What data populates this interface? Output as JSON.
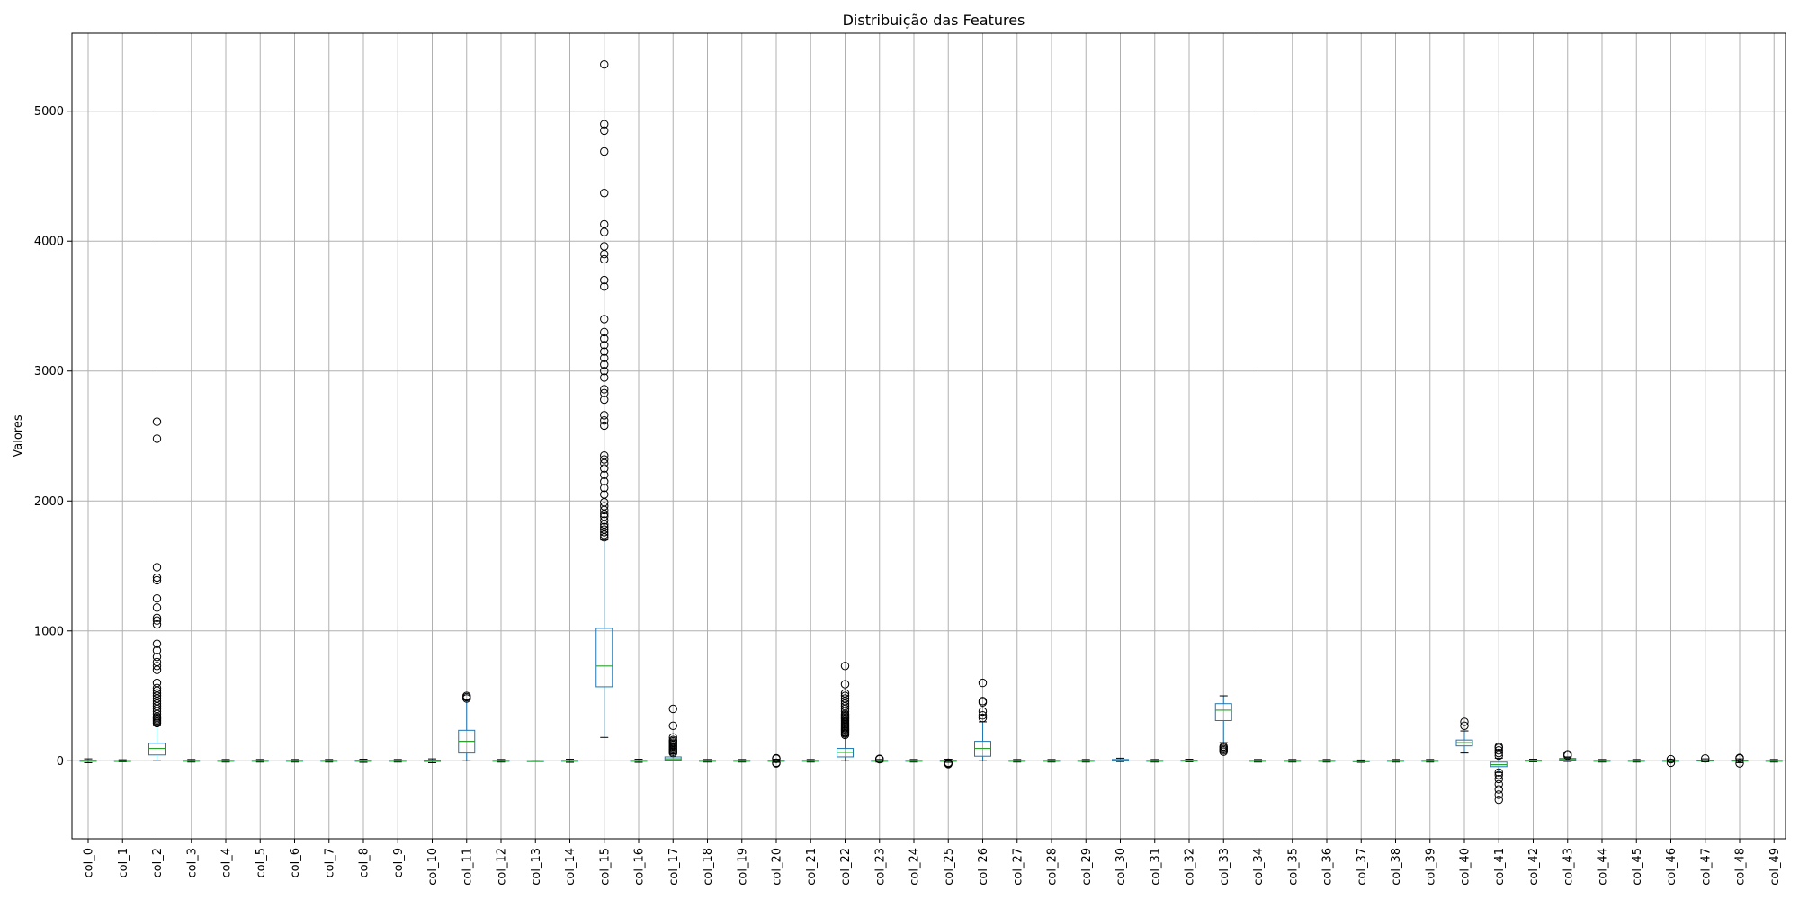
{
  "chart_data": {
    "type": "boxplot",
    "title": "Distribuição das Features",
    "xlabel": "",
    "ylabel": "Valores",
    "ylim": [
      -600,
      5600
    ],
    "yticks": [
      0,
      1000,
      2000,
      3000,
      4000,
      5000
    ],
    "grid": true,
    "colors": {
      "box": "#1f77b4",
      "median": "#2ca02c",
      "outlier": "#000000",
      "grid": "#b0b0b0"
    },
    "series": [
      {
        "label": "col_0",
        "whislo": -15,
        "q1": -4,
        "med": 0,
        "q3": 4,
        "whishi": 15,
        "fliers": []
      },
      {
        "label": "col_1",
        "whislo": -8,
        "q1": -2,
        "med": 0,
        "q3": 2,
        "whishi": 8,
        "fliers": []
      },
      {
        "label": "col_2",
        "whislo": 0,
        "q1": 45,
        "med": 95,
        "q3": 135,
        "whishi": 270,
        "fliers": [
          290,
          300,
          310,
          320,
          330,
          340,
          360,
          380,
          400,
          420,
          440,
          460,
          480,
          500,
          520,
          540,
          560,
          600,
          700,
          730,
          760,
          800,
          850,
          900,
          1050,
          1080,
          1100,
          1180,
          1250,
          1390,
          1410,
          1490,
          2480,
          2610
        ]
      },
      {
        "label": "col_3",
        "whislo": -10,
        "q1": -3,
        "med": 0,
        "q3": 3,
        "whishi": 10,
        "fliers": []
      },
      {
        "label": "col_4",
        "whislo": -10,
        "q1": -3,
        "med": 0,
        "q3": 3,
        "whishi": 10,
        "fliers": []
      },
      {
        "label": "col_5",
        "whislo": -10,
        "q1": -3,
        "med": 0,
        "q3": 3,
        "whishi": 10,
        "fliers": []
      },
      {
        "label": "col_6",
        "whislo": -10,
        "q1": -3,
        "med": 0,
        "q3": 3,
        "whishi": 10,
        "fliers": []
      },
      {
        "label": "col_7",
        "whislo": -10,
        "q1": -3,
        "med": 0,
        "q3": 3,
        "whishi": 10,
        "fliers": []
      },
      {
        "label": "col_8",
        "whislo": -12,
        "q1": -4,
        "med": 0,
        "q3": 4,
        "whishi": 12,
        "fliers": []
      },
      {
        "label": "col_9",
        "whislo": -10,
        "q1": -3,
        "med": 0,
        "q3": 3,
        "whishi": 10,
        "fliers": []
      },
      {
        "label": "col_10",
        "whislo": -15,
        "q1": -5,
        "med": 0,
        "q3": 5,
        "whishi": 15,
        "fliers": []
      },
      {
        "label": "col_11",
        "whislo": 0,
        "q1": 60,
        "med": 150,
        "q3": 235,
        "whishi": 470,
        "fliers": [
          480,
          490,
          500
        ]
      },
      {
        "label": "col_12",
        "whislo": -10,
        "q1": -3,
        "med": 0,
        "q3": 3,
        "whishi": 10,
        "fliers": []
      },
      {
        "label": "col_13",
        "whislo": -2,
        "q1": -1,
        "med": 0,
        "q3": 1,
        "whishi": 2,
        "fliers": []
      },
      {
        "label": "col_14",
        "whislo": -12,
        "q1": -3,
        "med": 0,
        "q3": 3,
        "whishi": 12,
        "fliers": []
      },
      {
        "label": "col_15",
        "whislo": 180,
        "q1": 570,
        "med": 730,
        "q3": 1020,
        "whishi": 1700,
        "fliers": [
          1720,
          1740,
          1760,
          1780,
          1800,
          1820,
          1850,
          1880,
          1900,
          1930,
          1960,
          1990,
          2050,
          2100,
          2150,
          2200,
          2250,
          2290,
          2320,
          2350,
          2580,
          2620,
          2660,
          2780,
          2830,
          2860,
          2950,
          3000,
          3050,
          3100,
          3150,
          3200,
          3250,
          3300,
          3400,
          3650,
          3700,
          3860,
          3900,
          3960,
          4070,
          4130,
          4370,
          4690,
          4850,
          4900,
          5360
        ]
      },
      {
        "label": "col_16",
        "whislo": -12,
        "q1": -3,
        "med": 0,
        "q3": 3,
        "whishi": 12,
        "fliers": []
      },
      {
        "label": "col_17",
        "whislo": 0,
        "q1": 5,
        "med": 15,
        "q3": 30,
        "whishi": 55,
        "fliers": [
          60,
          70,
          80,
          90,
          100,
          110,
          120,
          130,
          140,
          150,
          160,
          180,
          270,
          400
        ]
      },
      {
        "label": "col_18",
        "whislo": -10,
        "q1": -3,
        "med": 0,
        "q3": 3,
        "whishi": 10,
        "fliers": []
      },
      {
        "label": "col_19",
        "whislo": -10,
        "q1": -3,
        "med": 0,
        "q3": 3,
        "whishi": 10,
        "fliers": []
      },
      {
        "label": "col_20",
        "whislo": -12,
        "q1": -4,
        "med": 0,
        "q3": 4,
        "whishi": 12,
        "fliers": [
          -20,
          -15,
          15,
          20
        ]
      },
      {
        "label": "col_21",
        "whislo": -10,
        "q1": -3,
        "med": 0,
        "q3": 3,
        "whishi": 10,
        "fliers": []
      },
      {
        "label": "col_22",
        "whislo": 0,
        "q1": 30,
        "med": 65,
        "q3": 95,
        "whishi": 190,
        "fliers": [
          200,
          210,
          220,
          230,
          240,
          250,
          260,
          270,
          280,
          290,
          300,
          310,
          320,
          330,
          340,
          350,
          360,
          380,
          400,
          420,
          440,
          460,
          480,
          500,
          520,
          590,
          730
        ]
      },
      {
        "label": "col_23",
        "whislo": -10,
        "q1": -3,
        "med": 0,
        "q3": 3,
        "whishi": 10,
        "fliers": [
          12,
          15
        ]
      },
      {
        "label": "col_24",
        "whislo": -10,
        "q1": -3,
        "med": 0,
        "q3": 3,
        "whishi": 10,
        "fliers": []
      },
      {
        "label": "col_25",
        "whislo": -12,
        "q1": -4,
        "med": 0,
        "q3": 4,
        "whishi": 12,
        "fliers": [
          -25,
          -20,
          -15
        ]
      },
      {
        "label": "col_26",
        "whislo": 0,
        "q1": 35,
        "med": 95,
        "q3": 150,
        "whishi": 300,
        "fliers": [
          330,
          350,
          380,
          450,
          460,
          600
        ]
      },
      {
        "label": "col_27",
        "whislo": -10,
        "q1": -3,
        "med": 0,
        "q3": 3,
        "whishi": 10,
        "fliers": []
      },
      {
        "label": "col_28",
        "whislo": -10,
        "q1": -3,
        "med": 0,
        "q3": 3,
        "whishi": 10,
        "fliers": []
      },
      {
        "label": "col_29",
        "whislo": -10,
        "q1": -3,
        "med": 0,
        "q3": 3,
        "whishi": 10,
        "fliers": []
      },
      {
        "label": "col_30",
        "whislo": -6,
        "q1": 0,
        "med": 5,
        "q3": 10,
        "whishi": 20,
        "fliers": []
      },
      {
        "label": "col_31",
        "whislo": -10,
        "q1": -3,
        "med": 0,
        "q3": 3,
        "whishi": 10,
        "fliers": []
      },
      {
        "label": "col_32",
        "whislo": -8,
        "q1": -3,
        "med": 0,
        "q3": 4,
        "whishi": 12,
        "fliers": []
      },
      {
        "label": "col_33",
        "whislo": 140,
        "q1": 310,
        "med": 390,
        "q3": 440,
        "whishi": 500,
        "fliers": [
          70,
          80,
          90,
          100,
          110
        ]
      },
      {
        "label": "col_34",
        "whislo": -10,
        "q1": -3,
        "med": 0,
        "q3": 3,
        "whishi": 10,
        "fliers": []
      },
      {
        "label": "col_35",
        "whislo": -10,
        "q1": -3,
        "med": 0,
        "q3": 3,
        "whishi": 10,
        "fliers": []
      },
      {
        "label": "col_36",
        "whislo": -10,
        "q1": -3,
        "med": 0,
        "q3": 3,
        "whishi": 10,
        "fliers": []
      },
      {
        "label": "col_37",
        "whislo": -12,
        "q1": -6,
        "med": -3,
        "q3": 0,
        "whishi": 6,
        "fliers": []
      },
      {
        "label": "col_38",
        "whislo": -10,
        "q1": -3,
        "med": 0,
        "q3": 3,
        "whishi": 10,
        "fliers": []
      },
      {
        "label": "col_39",
        "whislo": -10,
        "q1": -3,
        "med": 0,
        "q3": 3,
        "whishi": 10,
        "fliers": []
      },
      {
        "label": "col_40",
        "whislo": 60,
        "q1": 115,
        "med": 140,
        "q3": 160,
        "whishi": 230,
        "fliers": [
          270,
          300
        ]
      },
      {
        "label": "col_41",
        "whislo": -90,
        "q1": -45,
        "med": -30,
        "q3": -10,
        "whishi": 20,
        "fliers": [
          -300,
          -260,
          -220,
          -180,
          -140,
          -110,
          -90,
          40,
          60,
          80,
          100,
          110
        ]
      },
      {
        "label": "col_42",
        "whislo": -8,
        "q1": -2,
        "med": 0,
        "q3": 4,
        "whishi": 12,
        "fliers": []
      },
      {
        "label": "col_43",
        "whislo": -5,
        "q1": 5,
        "med": 10,
        "q3": 18,
        "whishi": 30,
        "fliers": [
          40,
          50
        ]
      },
      {
        "label": "col_44",
        "whislo": -10,
        "q1": -3,
        "med": 0,
        "q3": 3,
        "whishi": 10,
        "fliers": []
      },
      {
        "label": "col_45",
        "whislo": -10,
        "q1": -3,
        "med": 0,
        "q3": 3,
        "whishi": 10,
        "fliers": []
      },
      {
        "label": "col_46",
        "whislo": -10,
        "q1": -3,
        "med": 0,
        "q3": 3,
        "whishi": 10,
        "fliers": [
          -15,
          12
        ]
      },
      {
        "label": "col_47",
        "whislo": -8,
        "q1": -2,
        "med": 0,
        "q3": 5,
        "whishi": 15,
        "fliers": [
          18
        ]
      },
      {
        "label": "col_48",
        "whislo": -15,
        "q1": -3,
        "med": 0,
        "q3": 5,
        "whishi": 15,
        "fliers": [
          -20,
          18,
          22
        ]
      },
      {
        "label": "col_49",
        "whislo": -10,
        "q1": -3,
        "med": 0,
        "q3": 3,
        "whishi": 10,
        "fliers": []
      }
    ]
  }
}
